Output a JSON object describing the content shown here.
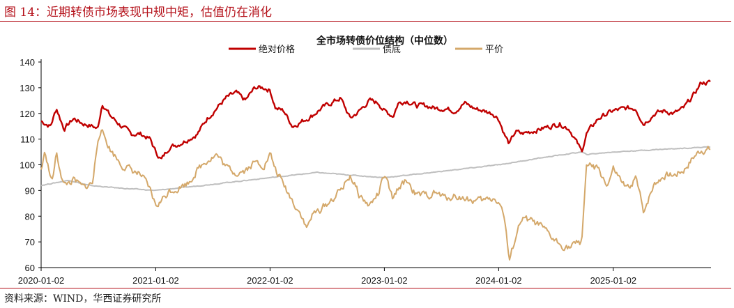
{
  "figure": {
    "caption": "图 14：近期转债市场表现中规中矩，估值仍在消化",
    "source": "资料来源：WIND，华西证券研究所"
  },
  "chart_data": {
    "type": "line",
    "title": "全市场转债价位结构（中位数）",
    "xlabel": "",
    "ylabel": "",
    "ylim": [
      60,
      140
    ],
    "yticks": [
      60,
      70,
      80,
      90,
      100,
      110,
      120,
      130,
      140
    ],
    "xlim": [
      "2020-01-02",
      "2025-11-10"
    ],
    "xticks": [
      "2020-01-02",
      "2021-01-02",
      "2022-01-02",
      "2023-01-02",
      "2024-01-02",
      "2025-01-02"
    ],
    "legend_position": "top",
    "grid": false,
    "series": [
      {
        "name": "绝对价格",
        "color": "#c00000",
        "x": [
          "2020-01-02",
          "2020-02-01",
          "2020-02-20",
          "2020-03-15",
          "2020-04-15",
          "2020-05-15",
          "2020-06-15",
          "2020-07-01",
          "2020-07-15",
          "2020-08-10",
          "2020-09-15",
          "2020-10-15",
          "2020-11-15",
          "2020-12-15",
          "2021-01-02",
          "2021-01-20",
          "2021-02-15",
          "2021-03-15",
          "2021-04-15",
          "2021-05-15",
          "2021-06-15",
          "2021-07-15",
          "2021-08-15",
          "2021-09-15",
          "2021-10-15",
          "2021-11-15",
          "2021-12-15",
          "2022-01-02",
          "2022-01-20",
          "2022-02-15",
          "2022-03-15",
          "2022-04-15",
          "2022-05-15",
          "2022-06-15",
          "2022-07-15",
          "2022-08-15",
          "2022-09-15",
          "2022-10-15",
          "2022-11-15",
          "2022-12-15",
          "2023-01-02",
          "2023-01-30",
          "2023-02-15",
          "2023-03-15",
          "2023-04-15",
          "2023-05-15",
          "2023-06-15",
          "2023-07-15",
          "2023-08-15",
          "2023-09-15",
          "2023-10-15",
          "2023-11-15",
          "2023-12-15",
          "2024-01-02",
          "2024-01-20",
          "2024-02-05",
          "2024-02-25",
          "2024-03-15",
          "2024-04-15",
          "2024-05-15",
          "2024-06-15",
          "2024-07-15",
          "2024-08-15",
          "2024-09-15",
          "2024-09-23",
          "2024-10-08",
          "2024-11-15",
          "2024-12-15",
          "2025-01-02",
          "2025-02-15",
          "2025-03-15",
          "2025-04-08",
          "2025-05-15",
          "2025-06-15",
          "2025-07-15",
          "2025-08-15",
          "2025-09-15",
          "2025-10-10",
          "2025-11-10"
        ],
        "values": [
          117,
          115,
          122,
          114,
          118,
          116,
          115,
          114,
          124,
          119,
          115,
          112,
          112,
          110,
          105,
          102,
          107,
          108,
          110,
          112,
          118,
          122,
          126,
          128,
          125,
          130,
          130,
          129,
          122,
          121,
          115,
          117,
          119,
          122,
          124,
          126,
          118,
          121,
          125,
          124,
          121,
          119,
          124,
          125,
          123,
          123,
          122,
          122,
          121,
          124,
          122,
          121,
          120,
          118,
          112,
          108,
          113,
          112,
          113,
          114,
          115,
          116,
          114,
          107,
          105,
          112,
          118,
          120,
          121,
          122,
          122,
          116,
          120,
          121,
          120,
          122,
          127,
          132,
          132
        ]
      },
      {
        "name": "债底",
        "color": "#bfbfbf",
        "x": [
          "2020-01-02",
          "2020-04-01",
          "2020-06-01",
          "2020-09-01",
          "2021-01-02",
          "2021-06-01",
          "2022-01-02",
          "2022-06-01",
          "2023-01-02",
          "2023-06-01",
          "2024-01-02",
          "2024-06-01",
          "2024-09-23",
          "2024-10-08",
          "2025-01-02",
          "2025-06-01",
          "2025-11-10"
        ],
        "values": [
          92,
          94,
          92,
          91,
          90,
          92,
          95,
          97,
          95,
          97,
          100,
          103,
          105,
          104,
          105,
          106,
          107
        ]
      },
      {
        "name": "平价",
        "color": "#d4a86a",
        "x": [
          "2020-01-02",
          "2020-01-15",
          "2020-02-05",
          "2020-02-20",
          "2020-03-15",
          "2020-04-15",
          "2020-05-15",
          "2020-06-15",
          "2020-07-01",
          "2020-07-10",
          "2020-08-10",
          "2020-09-15",
          "2020-10-15",
          "2020-11-15",
          "2020-12-15",
          "2021-01-02",
          "2021-01-20",
          "2021-02-15",
          "2021-03-15",
          "2021-04-15",
          "2021-05-15",
          "2021-06-15",
          "2021-07-15",
          "2021-08-15",
          "2021-09-15",
          "2021-10-15",
          "2021-11-15",
          "2021-12-15",
          "2022-01-02",
          "2022-01-20",
          "2022-02-15",
          "2022-03-15",
          "2022-04-15",
          "2022-04-28",
          "2022-05-15",
          "2022-06-15",
          "2022-07-15",
          "2022-08-15",
          "2022-09-15",
          "2022-10-15",
          "2022-11-15",
          "2022-12-15",
          "2023-01-02",
          "2023-01-30",
          "2023-02-15",
          "2023-03-15",
          "2023-04-15",
          "2023-05-15",
          "2023-06-15",
          "2023-07-15",
          "2023-08-15",
          "2023-09-15",
          "2023-10-15",
          "2023-11-15",
          "2023-12-15",
          "2024-01-02",
          "2024-01-20",
          "2024-02-05",
          "2024-02-25",
          "2024-03-15",
          "2024-04-15",
          "2024-05-15",
          "2024-06-15",
          "2024-07-15",
          "2024-08-15",
          "2024-09-23",
          "2024-10-08",
          "2024-11-15",
          "2024-12-15",
          "2025-01-02",
          "2025-02-15",
          "2025-03-15",
          "2025-04-08",
          "2025-05-15",
          "2025-06-15",
          "2025-07-15",
          "2025-08-15",
          "2025-09-15",
          "2025-10-10",
          "2025-11-10"
        ],
        "values": [
          98,
          105,
          93,
          104,
          92,
          94,
          91,
          93,
          110,
          114,
          106,
          100,
          98,
          96,
          90,
          84,
          86,
          90,
          91,
          93,
          98,
          102,
          104,
          99,
          97,
          98,
          101,
          100,
          104,
          98,
          92,
          86,
          80,
          75,
          80,
          83,
          86,
          90,
          96,
          88,
          84,
          89,
          96,
          86,
          91,
          94,
          88,
          88,
          89,
          87,
          88,
          87,
          86,
          86,
          87,
          86,
          80,
          62,
          72,
          79,
          78,
          76,
          72,
          69,
          68,
          70,
          100,
          98,
          92,
          98,
          90,
          95,
          82,
          93,
          96,
          96,
          98,
          103,
          106,
          106
        ]
      }
    ]
  }
}
